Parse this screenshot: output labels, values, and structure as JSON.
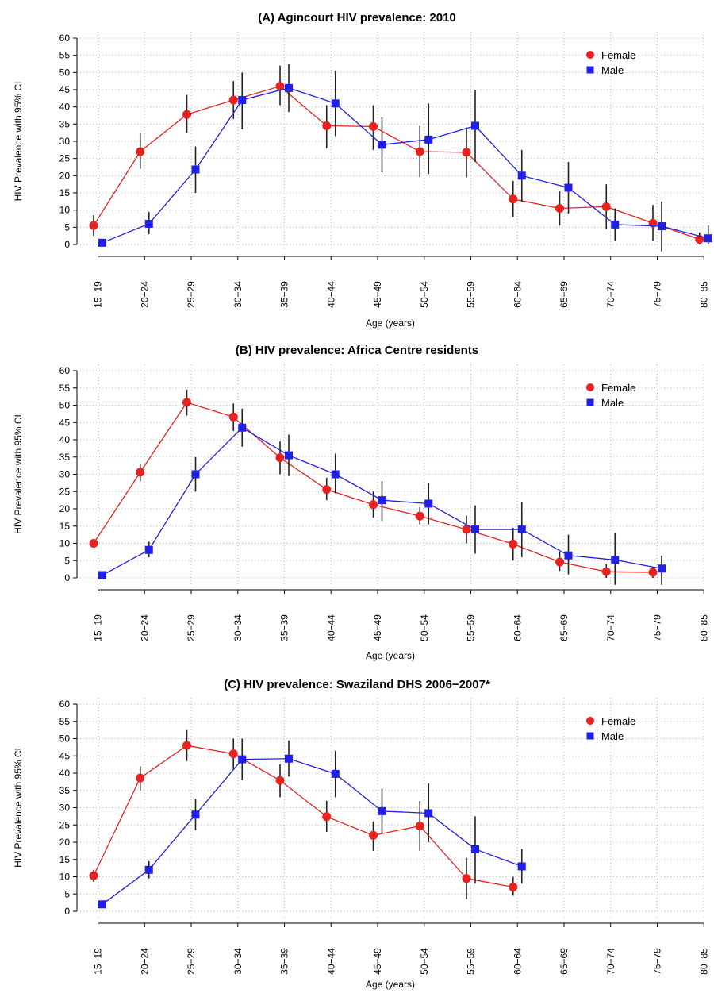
{
  "chart_data": [
    {
      "type": "line",
      "title": "(A) Agincourt HIV prevalence: 2010",
      "xlabel": "Age (years)",
      "ylabel": "HIV Prevalence with 95% CI",
      "ylim": [
        0,
        60
      ],
      "y_ticks": [
        0,
        5,
        10,
        15,
        20,
        25,
        30,
        35,
        40,
        45,
        50,
        55,
        60
      ],
      "grid": "dotted",
      "legend_position": "top-right",
      "categories": [
        "15−19",
        "20−24",
        "25−29",
        "30−34",
        "35−39",
        "40−44",
        "45−49",
        "50−54",
        "55−59",
        "60−64",
        "65−69",
        "70−74",
        "75−79",
        "80−85"
      ],
      "series": [
        {
          "name": "Female",
          "color": "#e8221f",
          "marker": "circle",
          "values": [
            5.5,
            27,
            37.8,
            42,
            46,
            34.5,
            34.3,
            27,
            26.8,
            13.2,
            10.5,
            11,
            6.2,
            1.5
          ],
          "lower": [
            2.5,
            22,
            32.5,
            36.5,
            40.5,
            28,
            27.5,
            19.5,
            19.5,
            8,
            5.5,
            4.5,
            1,
            0
          ],
          "upper": [
            8.5,
            32.5,
            43.5,
            47.5,
            52,
            40.5,
            40.5,
            34.5,
            34,
            18.5,
            15.5,
            17.5,
            11.5,
            3.5
          ]
        },
        {
          "name": "Male",
          "color": "#1f1fe8",
          "marker": "square",
          "values": [
            0.5,
            6,
            21.8,
            42,
            45.5,
            41,
            29,
            30.5,
            34.5,
            20,
            16.5,
            5.8,
            5.3,
            1.8
          ],
          "lower": [
            0,
            3,
            15,
            33.5,
            38.5,
            31.5,
            21,
            20.5,
            24,
            12.5,
            9,
            1,
            -2,
            0
          ],
          "upper": [
            1.5,
            9.5,
            28.5,
            50,
            52.5,
            50.5,
            37,
            41,
            45,
            27.5,
            24,
            10.5,
            12.5,
            5.5
          ]
        }
      ]
    },
    {
      "type": "line",
      "title": "(B) HIV prevalence: Africa Centre residents",
      "xlabel": "Age (years)",
      "ylabel": "HIV Prevalence with 95% CI",
      "ylim": [
        0,
        60
      ],
      "y_ticks": [
        0,
        5,
        10,
        15,
        20,
        25,
        30,
        35,
        40,
        45,
        50,
        55,
        60
      ],
      "grid": "dotted",
      "legend_position": "top-right",
      "categories": [
        "15−19",
        "20−24",
        "25−29",
        "30−34",
        "35−39",
        "40−44",
        "45−49",
        "50−54",
        "55−59",
        "60−64",
        "65−69",
        "70−74",
        "75−79",
        "80−85"
      ],
      "series": [
        {
          "name": "Female",
          "color": "#e8221f",
          "marker": "circle",
          "values": [
            10,
            30.6,
            50.8,
            46.6,
            34.8,
            25.6,
            21.2,
            17.9,
            14,
            9.8,
            4.6,
            1.8,
            1.6,
            null
          ],
          "lower": [
            9,
            28,
            47,
            42.5,
            30,
            22.5,
            17.5,
            15.5,
            10,
            5,
            2,
            0,
            0,
            null
          ],
          "upper": [
            11,
            33,
            54.5,
            50.5,
            39.5,
            29,
            25,
            20.5,
            18,
            14.5,
            7.5,
            4,
            3,
            null
          ]
        },
        {
          "name": "Male",
          "color": "#1f1fe8",
          "marker": "square",
          "values": [
            0.8,
            8.1,
            30,
            43.5,
            35.5,
            30,
            22.5,
            21.5,
            14,
            14,
            6.5,
            5.2,
            2.7,
            null
          ],
          "lower": [
            0,
            6,
            25,
            38,
            29.5,
            24.5,
            16.5,
            15.5,
            7,
            6,
            1,
            -2,
            -2,
            null
          ],
          "upper": [
            1.5,
            10.5,
            35,
            49,
            41.5,
            36,
            28,
            27.5,
            21,
            22,
            12.5,
            13,
            6.5,
            null
          ]
        }
      ]
    },
    {
      "type": "line",
      "title": "(C) HIV prevalence: Swaziland DHS 2006−2007*",
      "xlabel": "Age (years)",
      "ylabel": "HIV Prevalence with 95% CI",
      "ylim": [
        0,
        60
      ],
      "y_ticks": [
        0,
        5,
        10,
        15,
        20,
        25,
        30,
        35,
        40,
        45,
        50,
        55,
        60
      ],
      "grid": "dotted",
      "legend_position": "top-right",
      "categories": [
        "15−19",
        "20−24",
        "25−29",
        "30−34",
        "35−39",
        "40−44",
        "45−49",
        "50−54",
        "55−59",
        "60−64",
        "65−69",
        "70−74",
        "75−79",
        "80−85"
      ],
      "series": [
        {
          "name": "Female",
          "color": "#e8221f",
          "marker": "circle",
          "values": [
            10.3,
            38.6,
            48,
            45.6,
            37.9,
            27.4,
            22,
            24.7,
            9.5,
            7,
            null,
            null,
            null,
            null
          ],
          "lower": [
            8.5,
            35,
            43.5,
            41,
            33,
            23,
            17.5,
            17.5,
            3.5,
            4.5,
            null,
            null,
            null,
            null
          ],
          "upper": [
            12,
            42,
            52.5,
            50,
            42.5,
            32,
            26,
            32,
            15.5,
            10,
            null,
            null,
            null,
            null
          ]
        },
        {
          "name": "Male",
          "color": "#1f1fe8",
          "marker": "square",
          "values": [
            2,
            12,
            28,
            44,
            44.2,
            39.8,
            29,
            28.4,
            18,
            13,
            null,
            null,
            null,
            null
          ],
          "lower": [
            1,
            9.5,
            23.5,
            38,
            39,
            33,
            22.5,
            20,
            8,
            8,
            null,
            null,
            null,
            null
          ],
          "upper": [
            3,
            14.5,
            32.5,
            50,
            49.5,
            46.5,
            35.5,
            37,
            27.5,
            18,
            null,
            null,
            null,
            null
          ]
        }
      ]
    }
  ]
}
